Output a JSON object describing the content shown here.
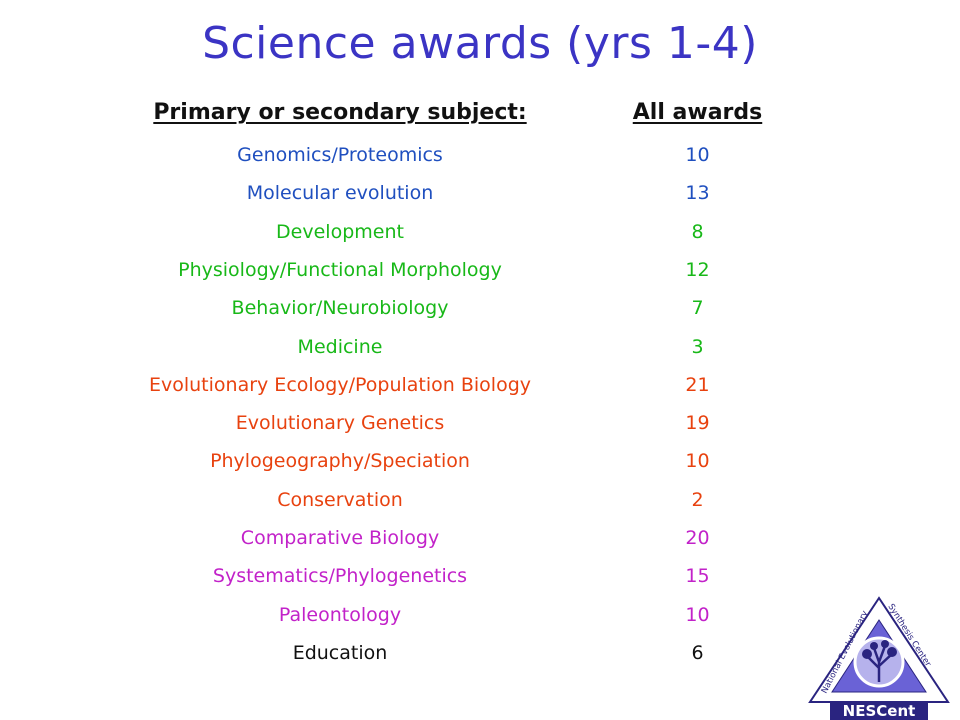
{
  "slide": {
    "title": "Science awards (yrs 1-4)",
    "header_subject": " Primary or secondary subject:",
    "header_awards": "All awards"
  },
  "colors": {
    "title": "#3b34c4",
    "blue": "#1f4fbf",
    "green": "#18b818",
    "orange": "#e8420f",
    "magenta": "#c222c9",
    "black": "#111111"
  },
  "rows": [
    {
      "subject": "Genomics/Proteomics",
      "count": "10",
      "color": "#1f4fbf"
    },
    {
      "subject": "Molecular evolution",
      "count": "13",
      "color": "#1f4fbf"
    },
    {
      "subject": "Development",
      "count": "8",
      "color": "#18b818"
    },
    {
      "subject": "Physiology/Functional Morphology",
      "count": "12",
      "color": "#18b818"
    },
    {
      "subject": "Behavior/Neurobiology",
      "count": "7",
      "color": "#18b818"
    },
    {
      "subject": "Medicine",
      "count": "3",
      "color": "#18b818"
    },
    {
      "subject": "Evolutionary Ecology/Population Biology",
      "count": "21",
      "color": "#e8420f"
    },
    {
      "subject": "Evolutionary Genetics",
      "count": "19",
      "color": "#e8420f"
    },
    {
      "subject": "Phylogeography/Speciation",
      "count": "10",
      "color": "#e8420f"
    },
    {
      "subject": "Conservation",
      "count": "2",
      "color": "#e8420f"
    },
    {
      "subject": "Comparative Biology",
      "count": "20",
      "color": "#c222c9"
    },
    {
      "subject": "Systematics/Phylogenetics",
      "count": "15",
      "color": "#c222c9"
    },
    {
      "subject": "Paleontology",
      "count": "10",
      "color": "#c222c9"
    },
    {
      "subject": "Education",
      "count": "6",
      "color": "#111111"
    }
  ],
  "logo": {
    "arc_left": "National Evolutionary",
    "arc_right": "Synthesis Center",
    "name": "NESCent",
    "icon": "tree-in-circle-icon"
  }
}
